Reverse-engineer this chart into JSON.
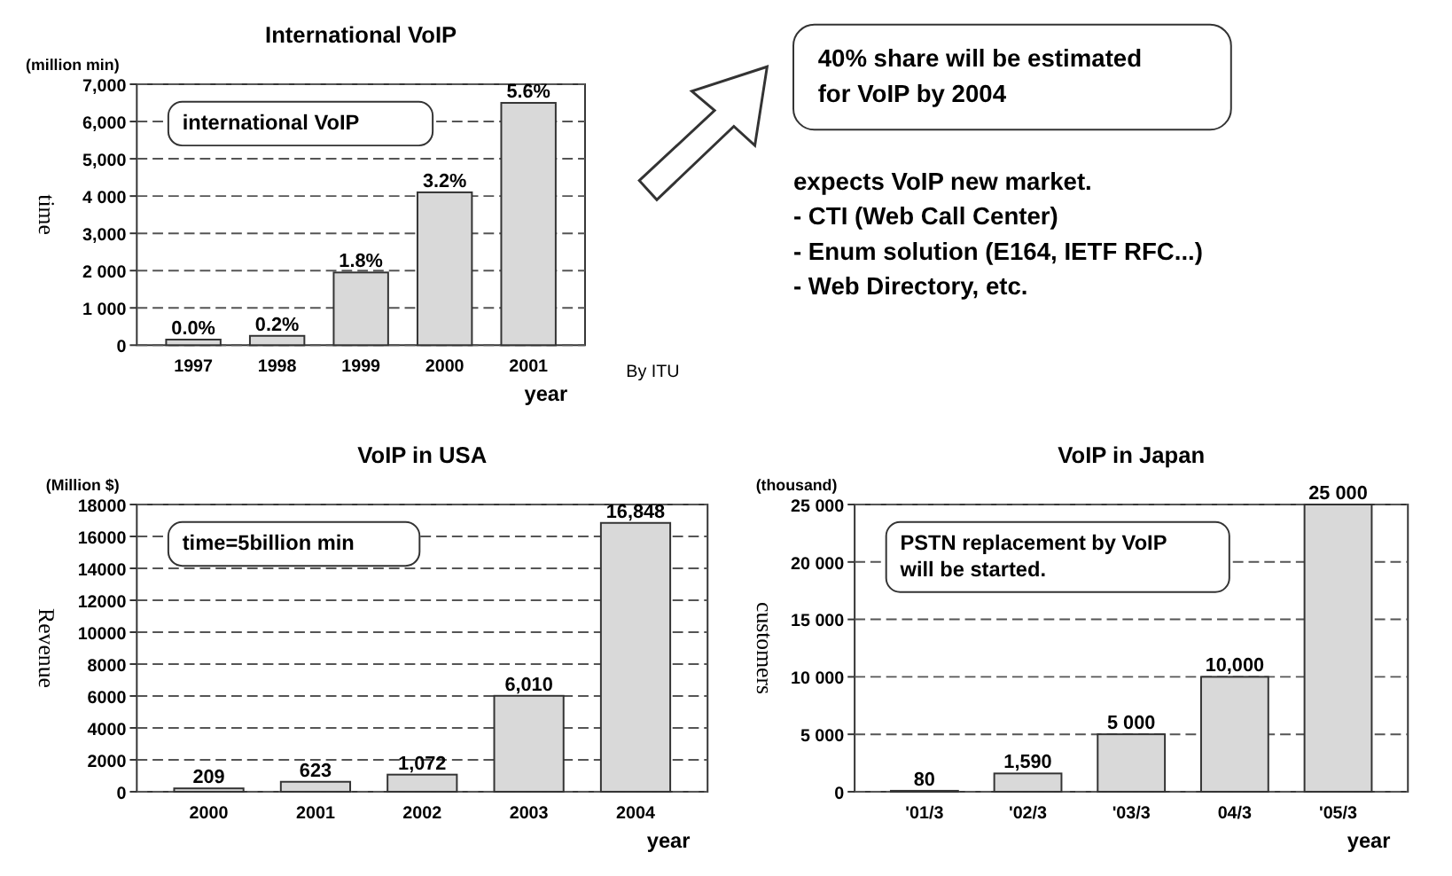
{
  "chart_data": [
    {
      "type": "bar",
      "title": "International VoIP",
      "xlabel": "year",
      "ylabel": "time",
      "categories": [
        "1997",
        "1998",
        "1999",
        "2000",
        "2001"
      ],
      "values": [
        150,
        250,
        1950,
        4100,
        6500
      ],
      "color": "#d9d9d9",
      "ylim": [
        0,
        7000
      ],
      "yticks": [
        0,
        {
          "value": 1000,
          "label": "1 000"
        },
        {
          "value": 2000,
          "label": "2 000"
        },
        {
          "value": 3000,
          "label": "3,000"
        },
        {
          "value": 4000,
          "label": "4 000"
        },
        {
          "value": 5000,
          "label": "5,000"
        },
        {
          "value": 6000,
          "label": "6,000"
        },
        {
          "value": 7000,
          "label": "7,000"
        }
      ],
      "grid": "y",
      "annotations": [
        "(million min)",
        "international VoIP",
        "By ITU",
        {
          "text": "0.0%",
          "x": "1997",
          "y": 150
        },
        {
          "text": "0.2%",
          "x": "1998",
          "y": 250
        },
        {
          "text": "1.8%",
          "x": "1999",
          "y": 1950
        },
        {
          "text": "3.2%",
          "x": "2000",
          "y": 4100
        },
        {
          "text": "5.6%",
          "x": "2001",
          "y": 6500
        }
      ]
    },
    {
      "type": "bar",
      "title": "VoIP in USA",
      "xlabel": "year",
      "ylabel": "Revenue",
      "categories": [
        "2000",
        "2001",
        "2002",
        "2003",
        "2004"
      ],
      "values": [
        209,
        623,
        1072,
        6010,
        16848
      ],
      "value_labels": [
        "209",
        "623",
        "1,072",
        "6,010",
        "16,848"
      ],
      "color": "#d9d9d9",
      "ylim": [
        0,
        18000
      ],
      "yticks": [
        0,
        2000,
        4000,
        6000,
        8000,
        10000,
        12000,
        14000,
        16000,
        18000
      ],
      "grid": "y",
      "annotations": [
        "(Million $)",
        "time=5billion min"
      ]
    },
    {
      "type": "bar",
      "title": "VoIP in Japan",
      "xlabel": "year",
      "ylabel": "customers",
      "categories": [
        "'01/3",
        "'02/3",
        "'03/3",
        "04/3",
        "'05/3"
      ],
      "values": [
        80,
        1590,
        5000,
        10000,
        25000
      ],
      "value_labels": [
        "80",
        "1,590",
        "5 000",
        "10,000",
        "25 000"
      ],
      "color": "#d9d9d9",
      "ylim": [
        0,
        25000
      ],
      "yticks": [
        0,
        {
          "value": 5000,
          "label": "5 000"
        },
        {
          "value": 10000,
          "label": "10 000"
        },
        {
          "value": 15000,
          "label": "15 000"
        },
        {
          "value": 20000,
          "label": "20 000"
        },
        {
          "value": 25000,
          "label": "25 000"
        }
      ],
      "grid": "y",
      "annotations": [
        "(thousand)",
        "PSTN replacement by VoIP will be started."
      ]
    },
    {
      "type": "other",
      "annotations": [
        "40% share will be estimated for VoIP  by 2004",
        "expects VoIP new market.",
        "- CTI (Web Call Center)",
        "- Enum solution (E164, IETF RFC...)",
        "- Web Directory, etc."
      ]
    }
  ]
}
